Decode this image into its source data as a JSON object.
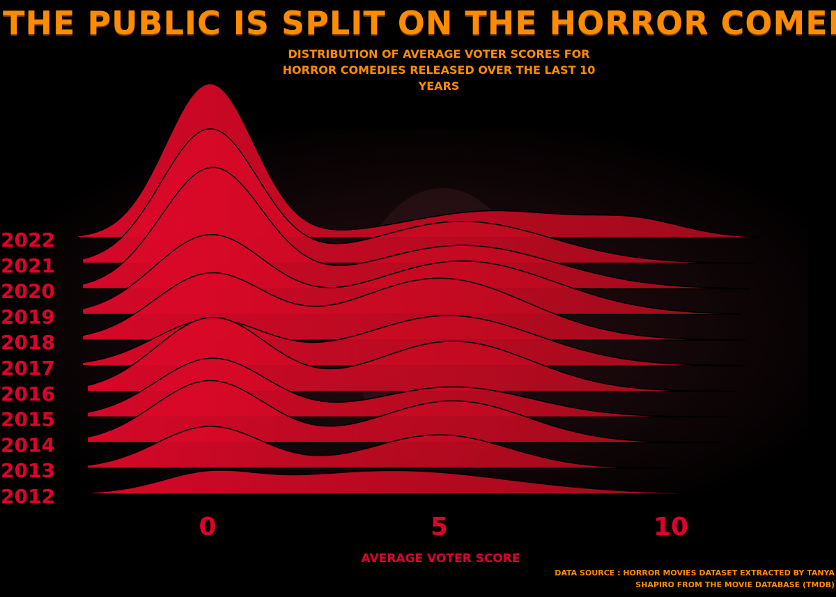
{
  "theme": {
    "background": "#000000",
    "title_color": "#ff8c00",
    "label_color": "#e0002a",
    "ridge_fill": "#d40a23",
    "ridge_stroke": "#000000"
  },
  "chart_data": {
    "type": "ridgeline",
    "title": "The Public Is Split On The Horror Comedy",
    "subtitle": "Distribution of average voter scores for horror comedies released over the last 10 years",
    "xlabel": "Average Voter Score",
    "ylabel": "",
    "xlim": [
      -2.5,
      11.8
    ],
    "x_ticks": [
      0,
      5,
      10
    ],
    "x_tick_labels": [
      "0",
      "5",
      "10"
    ],
    "source": "Data source : Horror movies dataset extracted by Tanya Shapiro from The Movie Database (TMDB)",
    "grid": false,
    "legend": "none",
    "series": [
      {
        "name": "2022",
        "range": [
          -2.8,
          11.9
        ],
        "peaks": [
          {
            "mu": 0.05,
            "sigma": 0.95,
            "height": 0.92
          },
          {
            "mu": 6.2,
            "sigma": 1.9,
            "height": 0.16
          },
          {
            "mu": 9.3,
            "sigma": 1.0,
            "height": 0.08
          }
        ]
      },
      {
        "name": "2021",
        "range": [
          -2.7,
          11.8
        ],
        "peaks": [
          {
            "mu": 0.05,
            "sigma": 1.05,
            "height": 0.8
          },
          {
            "mu": 5.5,
            "sigma": 1.9,
            "height": 0.25
          }
        ]
      },
      {
        "name": "2020",
        "range": [
          -2.7,
          11.7
        ],
        "peaks": [
          {
            "mu": 0.1,
            "sigma": 1.1,
            "height": 0.72
          },
          {
            "mu": 5.5,
            "sigma": 2.0,
            "height": 0.26
          }
        ]
      },
      {
        "name": "2019",
        "range": [
          -2.7,
          11.5
        ],
        "peaks": [
          {
            "mu": 0.05,
            "sigma": 1.2,
            "height": 0.47
          },
          {
            "mu": 5.5,
            "sigma": 2.0,
            "height": 0.32
          }
        ]
      },
      {
        "name": "2018",
        "range": [
          -2.7,
          11.6
        ],
        "peaks": [
          {
            "mu": 0.05,
            "sigma": 1.2,
            "height": 0.39
          },
          {
            "mu": 5.0,
            "sigma": 1.9,
            "height": 0.37
          }
        ]
      },
      {
        "name": "2017",
        "range": [
          -2.7,
          11.6
        ],
        "peaks": [
          {
            "mu": 0.05,
            "sigma": 1.2,
            "height": 0.27
          },
          {
            "mu": 5.2,
            "sigma": 1.9,
            "height": 0.3
          }
        ]
      },
      {
        "name": "2016",
        "range": [
          -2.6,
          11.4
        ],
        "peaks": [
          {
            "mu": 0.1,
            "sigma": 1.2,
            "height": 0.44
          },
          {
            "mu": 5.3,
            "sigma": 1.7,
            "height": 0.3
          }
        ]
      },
      {
        "name": "2015",
        "range": [
          -2.6,
          11.2
        ],
        "peaks": [
          {
            "mu": 0.1,
            "sigma": 1.2,
            "height": 0.35
          },
          {
            "mu": 5.3,
            "sigma": 1.7,
            "height": 0.18
          }
        ]
      },
      {
        "name": "2014",
        "range": [
          -2.6,
          11.1
        ],
        "peaks": [
          {
            "mu": 0.05,
            "sigma": 1.2,
            "height": 0.37
          },
          {
            "mu": 5.3,
            "sigma": 1.6,
            "height": 0.25
          }
        ]
      },
      {
        "name": "2013",
        "range": [
          -2.6,
          10.0
        ],
        "peaks": [
          {
            "mu": 0.05,
            "sigma": 1.15,
            "height": 0.25
          },
          {
            "mu": 5.0,
            "sigma": 1.5,
            "height": 0.2
          }
        ]
      },
      {
        "name": "2012",
        "range": [
          -2.5,
          11.3
        ],
        "peaks": [
          {
            "mu": 0.0,
            "sigma": 1.0,
            "height": 0.1
          },
          {
            "mu": 4.0,
            "sigma": 2.5,
            "height": 0.14
          }
        ]
      }
    ]
  }
}
